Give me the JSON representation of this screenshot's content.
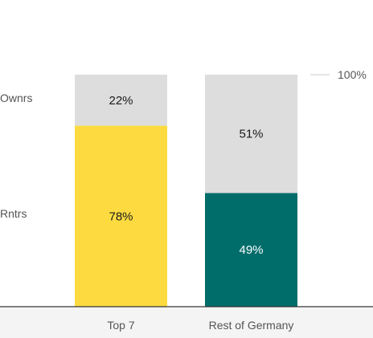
{
  "chart_data": {
    "type": "bar",
    "stacked": true,
    "percent": true,
    "categories": [
      "Top 7",
      "Rest of Germany"
    ],
    "series": [
      {
        "name": "Rntrs",
        "values": [
          78,
          49
        ],
        "colors": [
          "#FDDB40",
          "#006D6B"
        ],
        "label_colors": [
          "#1a1a1a",
          "#ffffff"
        ]
      },
      {
        "name": "Ownrs",
        "values": [
          22,
          51
        ],
        "colors": [
          "#DDDDDD",
          "#DDDDDD"
        ],
        "label_colors": [
          "#1a1a1a",
          "#1a1a1a"
        ]
      }
    ],
    "value_labels": [
      [
        "78%",
        "49%"
      ],
      [
        "22%",
        "51%"
      ]
    ],
    "ylim": [
      0,
      100
    ],
    "reference_line": {
      "value": 100,
      "label": "100%"
    },
    "grid": false,
    "legend": "left inline row labels",
    "colors": {
      "axis": "#333333",
      "text": "#555555",
      "reference": "#cccccc",
      "footer_band": "#f4f4f4"
    }
  }
}
